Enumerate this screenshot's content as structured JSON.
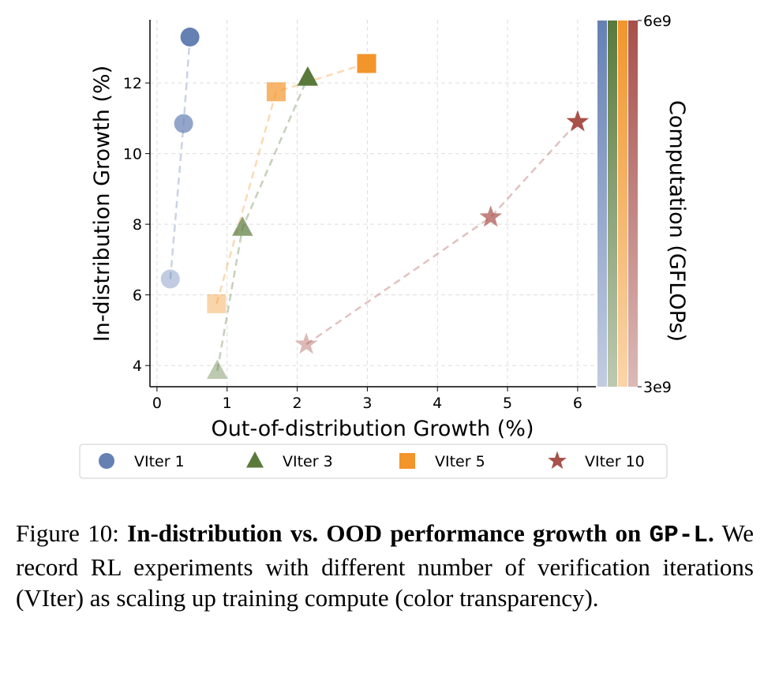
{
  "chart_data": {
    "type": "scatter",
    "xlabel": "Out-of-distribution Growth (%)",
    "ylabel": "In-distribution Growth (%)",
    "xlim": [
      -0.1,
      6.26
    ],
    "ylim": [
      3.4,
      13.79
    ],
    "xticks": [
      0,
      1,
      2,
      3,
      4,
      5,
      6
    ],
    "yticks": [
      4,
      6,
      8,
      10,
      12
    ],
    "grid": true,
    "series": [
      {
        "name": "VIter 1",
        "marker": "circle",
        "color": "#6580b3",
        "x": [
          0.19,
          0.38,
          0.47
        ],
        "y": [
          6.45,
          10.85,
          13.3
        ]
      },
      {
        "name": "VIter 3",
        "marker": "triangle",
        "color": "#5a7a3c",
        "x": [
          0.86,
          1.22,
          2.15
        ],
        "y": [
          3.85,
          7.9,
          12.15
        ]
      },
      {
        "name": "VIter 5",
        "marker": "square",
        "color": "#f2952b",
        "x": [
          0.85,
          1.7,
          2.99
        ],
        "y": [
          5.75,
          11.75,
          12.55
        ]
      },
      {
        "name": "VIter 10",
        "marker": "star",
        "color": "#a8504a",
        "x": [
          2.13,
          4.76,
          6.0
        ],
        "y": [
          4.6,
          8.2,
          10.9
        ]
      }
    ],
    "point_alpha": [
      0.4,
      0.7,
      1.0
    ],
    "colorbar": {
      "label": "Computation (GFLOPs)",
      "min_label": "3e9",
      "max_label": "6e9",
      "range": [
        3000000000.0,
        6000000000.0
      ]
    },
    "legend_placement": "bottom"
  },
  "caption": {
    "prefix": "Figure 10: ",
    "bold": "In-distribution vs. OOD performance growth on ",
    "mono": "GP-L",
    "bold_end": ".",
    "rest": " We record RL experiments with different number of verification iterations (VIter) as scaling up training compute (color transparency)."
  }
}
